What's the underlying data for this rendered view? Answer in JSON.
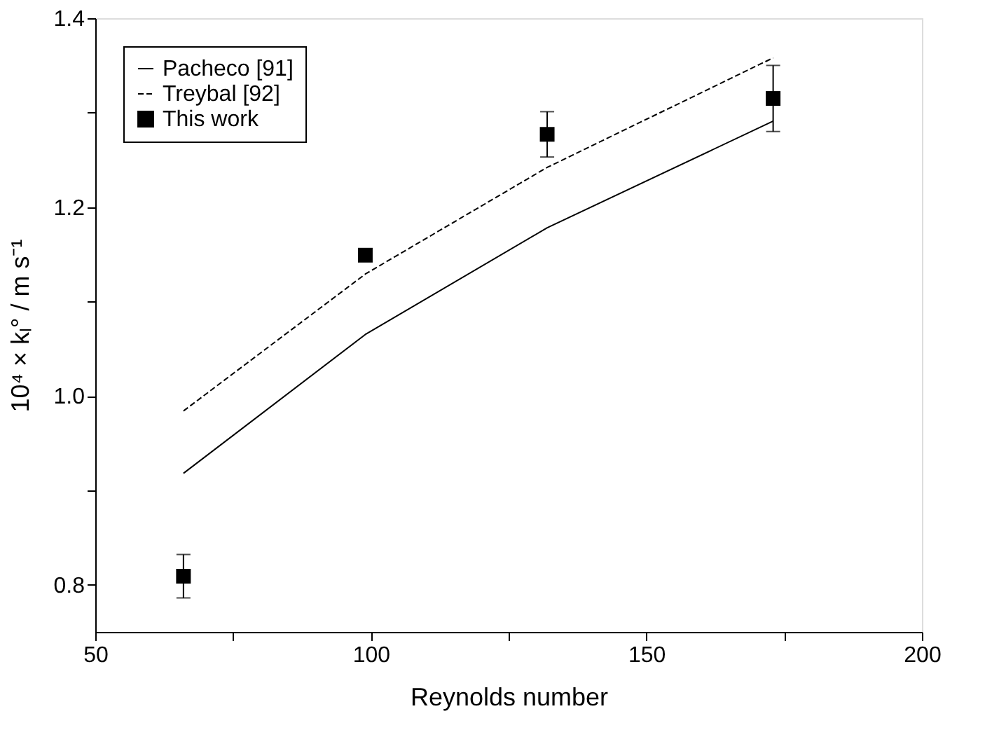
{
  "chart_data": {
    "type": "line",
    "xlabel": "Reynolds number",
    "ylabel": "10⁴ × kₗ° / m s⁻¹",
    "xlim": [
      50,
      200
    ],
    "xticks": [
      50,
      {
        "value": 75,
        "label": null
      },
      100,
      {
        "value": 125,
        "label": null
      },
      150,
      {
        "value": 175,
        "label": null
      },
      200
    ],
    "ylim": [
      0.75,
      1.4
    ],
    "yticks": [
      {
        "value": 0.8,
        "label": "0.8"
      },
      {
        "value": 0.9,
        "label": null
      },
      {
        "value": 1.0,
        "label": "1.0"
      },
      {
        "value": 1.1,
        "label": null
      },
      {
        "value": 1.2,
        "label": "1.2"
      },
      {
        "value": 1.3,
        "label": null
      },
      {
        "value": 1.4,
        "label": "1.4"
      }
    ],
    "grid": false,
    "legend": "top left",
    "series": [
      {
        "name": "Pacheco [91]",
        "line_style": "solid",
        "color": "#000000",
        "x": [
          66,
          99,
          132,
          173
        ],
        "values": [
          0.918,
          1.065,
          1.178,
          1.291
        ]
      },
      {
        "name": "Treybal [92]",
        "line_style": "dashed",
        "color": "#000000",
        "x": [
          66,
          99,
          132,
          173
        ],
        "values": [
          0.984,
          1.129,
          1.242,
          1.358
        ]
      },
      {
        "name": "This work",
        "type": "scatter",
        "marker": "square",
        "color": "#000000",
        "x": [
          66,
          99,
          132,
          173
        ],
        "values": [
          0.809,
          1.149,
          1.277,
          1.315
        ],
        "errors": [
          0.023,
          null,
          0.024,
          0.035
        ]
      }
    ]
  }
}
